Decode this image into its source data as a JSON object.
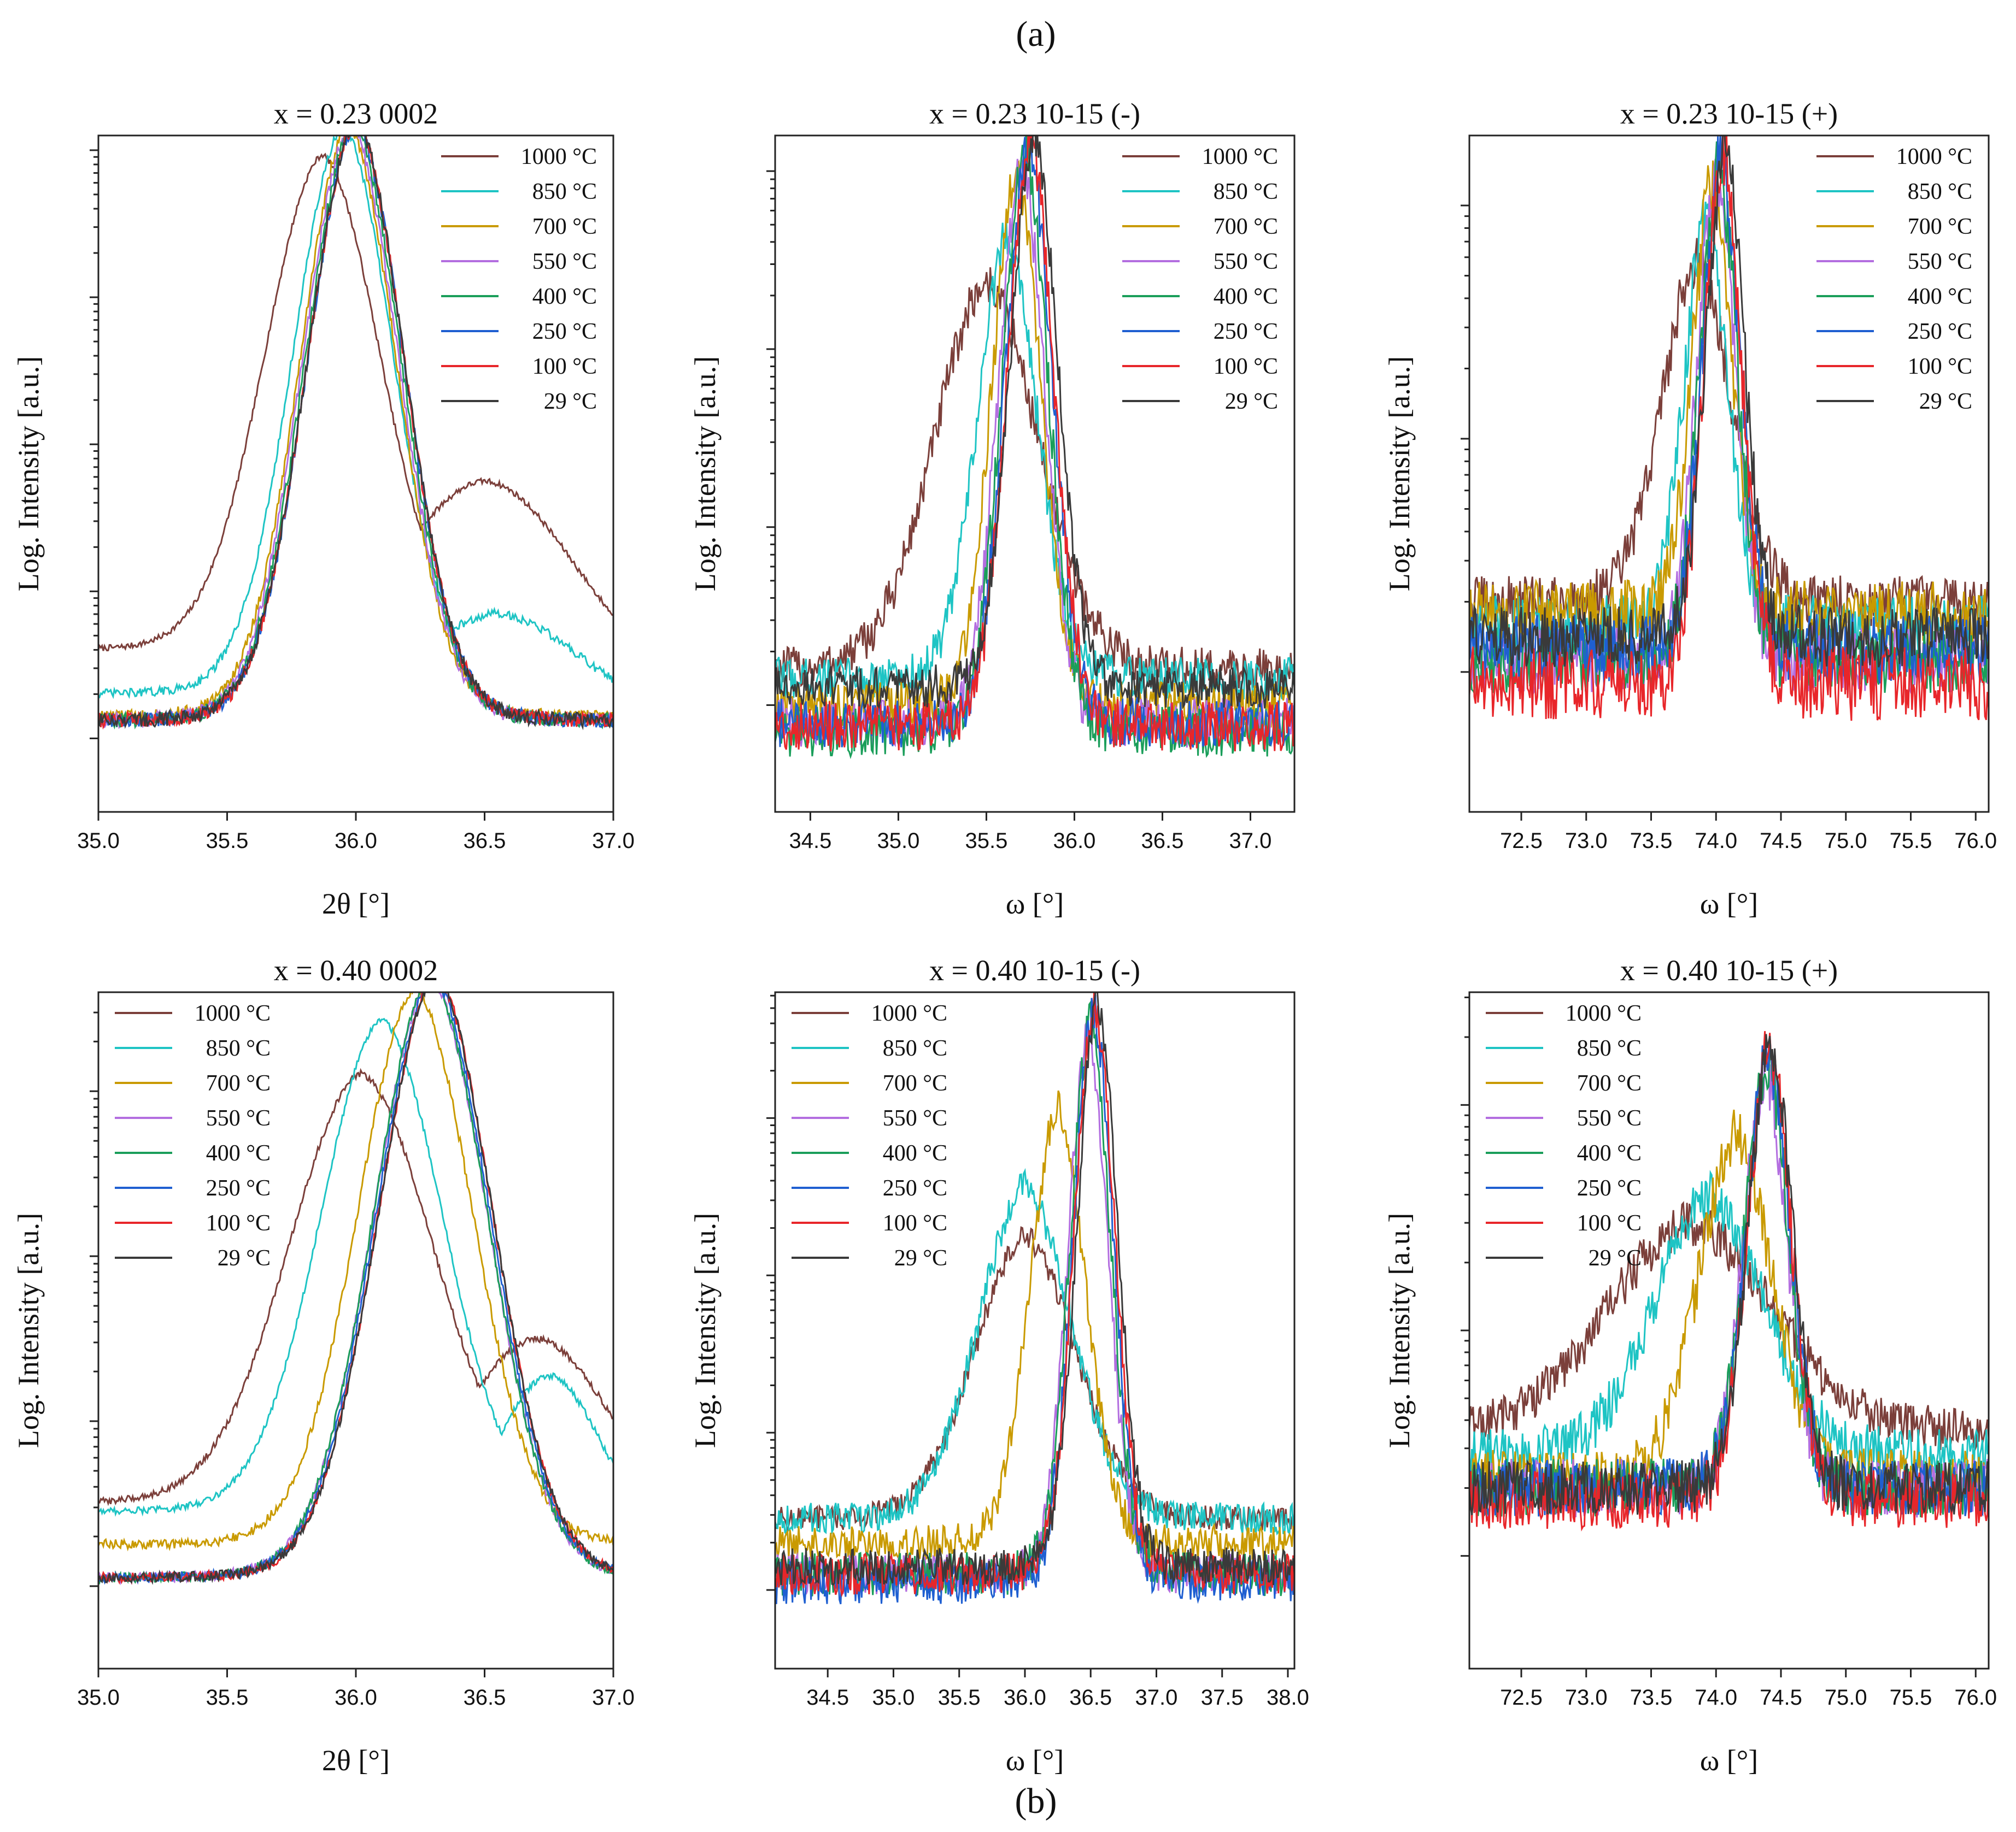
{
  "figure": {
    "label_a": "(a)",
    "label_b": "(b)"
  },
  "colors": {
    "1000 °C": "#7b3f3a",
    "850 °C": "#1ec4c4",
    "700 °C": "#c99a00",
    "550 °C": "#b36ee0",
    "400 °C": "#1a9e5a",
    "250 °C": "#1f5fd1",
    "100 °C": "#e8262a",
    "29 °C": "#3a3a3a"
  },
  "chart_data": [
    {
      "type": "line",
      "title": "x = 0.23 0002",
      "xlabel": "2θ [°]",
      "ylabel": "Log. Intensity [a.u.]",
      "xlim": [
        35.0,
        37.0
      ],
      "xticks": [
        35.0,
        35.5,
        36.0,
        36.5,
        37.0
      ],
      "xtick_labels": [
        "35.0",
        "35.5",
        "36.0",
        "36.5",
        "37.0"
      ],
      "ylim": [
        -0.5,
        4.1
      ],
      "legend": "top-right",
      "series": [
        {
          "name": "1000 °C",
          "center": 35.87,
          "peak": 3.7,
          "width": 0.32,
          "background": 0.6,
          "shoulder": [
            36.5,
            1.35,
            0.35
          ],
          "noise": 0.02
        },
        {
          "name": "850 °C",
          "center": 35.95,
          "peak": 3.85,
          "width": 0.28,
          "background": 0.3,
          "shoulder": [
            36.55,
            0.6,
            0.3
          ],
          "noise": 0.03
        },
        {
          "name": "700 °C",
          "center": 35.97,
          "peak": 3.85,
          "width": 0.27,
          "background": 0.15,
          "noise": 0.04
        },
        {
          "name": "550 °C",
          "center": 35.98,
          "peak": 3.85,
          "width": 0.27,
          "background": 0.12,
          "noise": 0.05
        },
        {
          "name": "400 °C",
          "center": 35.99,
          "peak": 3.86,
          "width": 0.27,
          "background": 0.12,
          "noise": 0.05
        },
        {
          "name": "250 °C",
          "center": 36.0,
          "peak": 3.86,
          "width": 0.27,
          "background": 0.12,
          "noise": 0.05
        },
        {
          "name": "100 °C",
          "center": 36.0,
          "peak": 3.87,
          "width": 0.27,
          "background": 0.12,
          "noise": 0.05
        },
        {
          "name": "29 °C",
          "center": 36.0,
          "peak": 3.88,
          "width": 0.27,
          "background": 0.12,
          "noise": 0.05
        }
      ]
    },
    {
      "type": "line",
      "title": "x = 0.23 10-15 (-)",
      "xlabel": "ω [°]",
      "ylabel": "Log. Intensity [a.u.]",
      "xlim": [
        34.3,
        37.25
      ],
      "xticks": [
        34.5,
        35.0,
        35.5,
        36.0,
        36.5,
        37.0
      ],
      "xtick_labels": [
        "34.5",
        "35.0",
        "35.5",
        "36.0",
        "36.5",
        "37.0"
      ],
      "ylim": [
        -0.6,
        3.2
      ],
      "legend": "top-right",
      "series": [
        {
          "name": "1000 °C",
          "center": 35.5,
          "peak": 2.2,
          "width": 0.42,
          "background": 0.2,
          "noise": 0.12
        },
        {
          "name": "850 °C",
          "center": 35.62,
          "peak": 2.45,
          "width": 0.24,
          "background": 0.15,
          "noise": 0.12
        },
        {
          "name": "700 °C",
          "center": 35.67,
          "peak": 2.75,
          "width": 0.2,
          "background": 0.0,
          "noise": 0.13
        },
        {
          "name": "550 °C",
          "center": 35.7,
          "peak": 2.8,
          "width": 0.19,
          "background": -0.1,
          "noise": 0.14
        },
        {
          "name": "400 °C",
          "center": 35.72,
          "peak": 2.85,
          "width": 0.19,
          "background": -0.15,
          "noise": 0.14
        },
        {
          "name": "250 °C",
          "center": 35.74,
          "peak": 2.9,
          "width": 0.19,
          "background": -0.1,
          "noise": 0.14
        },
        {
          "name": "100 °C",
          "center": 35.75,
          "peak": 2.92,
          "width": 0.19,
          "background": -0.12,
          "noise": 0.14
        },
        {
          "name": "29 °C",
          "center": 35.77,
          "peak": 2.98,
          "width": 0.19,
          "background": 0.1,
          "noise": 0.12
        }
      ]
    },
    {
      "type": "line",
      "title": "x = 0.23 10-15 (+)",
      "xlabel": "ω [°]",
      "ylabel": "Log. Intensity [a.u.]",
      "xlim": [
        72.1,
        76.1
      ],
      "xticks": [
        72.5,
        73.0,
        73.5,
        74.0,
        74.5,
        75.0,
        75.5,
        76.0
      ],
      "xtick_labels": [
        "72.5",
        "73.0",
        "73.5",
        "74.0",
        "74.5",
        "75.0",
        "75.5",
        "76.0"
      ],
      "ylim": [
        -0.6,
        2.3
      ],
      "legend": "top-right",
      "series": [
        {
          "name": "1000 °C",
          "center": 73.85,
          "peak": 1.65,
          "width": 0.38,
          "background": 0.3,
          "noise": 0.11
        },
        {
          "name": "850 °C",
          "center": 73.92,
          "peak": 1.8,
          "width": 0.24,
          "background": 0.2,
          "noise": 0.13
        },
        {
          "name": "700 °C",
          "center": 73.97,
          "peak": 1.95,
          "width": 0.22,
          "background": 0.25,
          "noise": 0.14
        },
        {
          "name": "550 °C",
          "center": 74.0,
          "peak": 1.98,
          "width": 0.21,
          "background": 0.05,
          "noise": 0.14
        },
        {
          "name": "400 °C",
          "center": 74.02,
          "peak": 2.0,
          "width": 0.21,
          "background": 0.05,
          "noise": 0.14
        },
        {
          "name": "250 °C",
          "center": 74.04,
          "peak": 2.03,
          "width": 0.21,
          "background": 0.1,
          "noise": 0.15
        },
        {
          "name": "100 °C",
          "center": 74.05,
          "peak": 2.05,
          "width": 0.21,
          "background": -0.05,
          "noise": 0.16
        },
        {
          "name": "29 °C",
          "center": 74.07,
          "peak": 2.08,
          "width": 0.21,
          "background": 0.15,
          "noise": 0.13
        }
      ]
    },
    {
      "type": "line",
      "title": "x = 0.40 0002",
      "xlabel": "2θ [°]",
      "ylabel": "Log. Intensity [a.u.]",
      "xlim": [
        35.0,
        37.0
      ],
      "xticks": [
        35.0,
        35.5,
        36.0,
        36.5,
        37.0
      ],
      "xtick_labels": [
        "35.0",
        "35.5",
        "36.0",
        "36.5",
        "37.0"
      ],
      "ylim": [
        -0.5,
        3.6
      ],
      "legend": "top-left",
      "series": [
        {
          "name": "1000 °C",
          "center": 36.02,
          "peak": 2.9,
          "width": 0.4,
          "background": 0.5,
          "shoulder": [
            36.7,
            1.15,
            0.3
          ],
          "noise": 0.02
        },
        {
          "name": "850 °C",
          "center": 36.1,
          "peak": 3.2,
          "width": 0.34,
          "background": 0.45,
          "shoulder": [
            36.75,
            0.95,
            0.2
          ],
          "noise": 0.02
        },
        {
          "name": "700 °C",
          "center": 36.23,
          "peak": 3.35,
          "width": 0.32,
          "background": 0.25,
          "noise": 0.03
        },
        {
          "name": "550 °C",
          "center": 36.29,
          "peak": 3.4,
          "width": 0.32,
          "background": 0.05,
          "noise": 0.03
        },
        {
          "name": "400 °C",
          "center": 36.29,
          "peak": 3.41,
          "width": 0.32,
          "background": 0.05,
          "noise": 0.03
        },
        {
          "name": "250 °C",
          "center": 36.3,
          "peak": 3.41,
          "width": 0.32,
          "background": 0.05,
          "noise": 0.03
        },
        {
          "name": "100 °C",
          "center": 36.31,
          "peak": 3.42,
          "width": 0.32,
          "background": 0.05,
          "noise": 0.03
        },
        {
          "name": "29 °C",
          "center": 36.31,
          "peak": 3.42,
          "width": 0.32,
          "background": 0.05,
          "noise": 0.03
        }
      ]
    },
    {
      "type": "line",
      "title": "x = 0.40 10-15 (-)",
      "xlabel": "ω [°]",
      "ylabel": "Log. Intensity [a.u.]",
      "xlim": [
        34.1,
        38.05
      ],
      "xticks": [
        34.5,
        35.0,
        35.5,
        36.0,
        36.5,
        37.0,
        37.5,
        38.0
      ],
      "xtick_labels": [
        "34.5",
        "35.0",
        "35.5",
        "36.0",
        "36.5",
        "37.0",
        "37.5",
        "38.0"
      ],
      "ylim": [
        -0.5,
        3.8
      ],
      "legend": "top-left",
      "series": [
        {
          "name": "1000 °C",
          "center": 36.0,
          "peak": 2.1,
          "width": 0.55,
          "background": 0.45,
          "noise": 0.08
        },
        {
          "name": "850 °C",
          "center": 36.0,
          "peak": 2.4,
          "width": 0.5,
          "background": 0.45,
          "noise": 0.1
        },
        {
          "name": "700 °C",
          "center": 36.25,
          "peak": 2.85,
          "width": 0.3,
          "background": 0.3,
          "noise": 0.11
        },
        {
          "name": "550 °C",
          "center": 36.48,
          "peak": 3.25,
          "width": 0.22,
          "background": 0.1,
          "noise": 0.13
        },
        {
          "name": "400 °C",
          "center": 36.5,
          "peak": 3.35,
          "width": 0.22,
          "background": 0.1,
          "noise": 0.14
        },
        {
          "name": "250 °C",
          "center": 36.52,
          "peak": 3.4,
          "width": 0.22,
          "background": 0.05,
          "noise": 0.14
        },
        {
          "name": "100 °C",
          "center": 36.53,
          "peak": 3.43,
          "width": 0.22,
          "background": 0.1,
          "noise": 0.13
        },
        {
          "name": "29 °C",
          "center": 36.55,
          "peak": 3.48,
          "width": 0.22,
          "background": 0.15,
          "noise": 0.12
        }
      ]
    },
    {
      "type": "line",
      "title": "x = 0.40 10-15 (+)",
      "xlabel": "ω [°]",
      "ylabel": "Log. Intensity [a.u.]",
      "xlim": [
        72.1,
        76.1
      ],
      "xticks": [
        72.5,
        73.0,
        73.5,
        74.0,
        74.5,
        75.0,
        75.5,
        76.0
      ],
      "xtick_labels": [
        "72.5",
        "73.0",
        "73.5",
        "74.0",
        "74.5",
        "75.0",
        "75.5",
        "76.0"
      ],
      "ylim": [
        -0.5,
        2.5
      ],
      "legend": "top-left",
      "series": [
        {
          "name": "1000 °C",
          "center": 73.8,
          "peak": 1.4,
          "width": 0.9,
          "background": 0.55,
          "noise": 0.1
        },
        {
          "name": "850 °C",
          "center": 73.95,
          "peak": 1.5,
          "width": 0.6,
          "background": 0.45,
          "noise": 0.11
        },
        {
          "name": "700 °C",
          "center": 74.15,
          "peak": 1.75,
          "width": 0.4,
          "background": 0.35,
          "noise": 0.12
        },
        {
          "name": "550 °C",
          "center": 74.38,
          "peak": 2.0,
          "width": 0.24,
          "background": 0.3,
          "noise": 0.13
        },
        {
          "name": "400 °C",
          "center": 74.39,
          "peak": 2.05,
          "width": 0.24,
          "background": 0.3,
          "noise": 0.13
        },
        {
          "name": "250 °C",
          "center": 74.4,
          "peak": 2.08,
          "width": 0.24,
          "background": 0.3,
          "noise": 0.13
        },
        {
          "name": "100 °C",
          "center": 74.41,
          "peak": 2.1,
          "width": 0.24,
          "background": 0.25,
          "noise": 0.13
        },
        {
          "name": "29 °C",
          "center": 74.42,
          "peak": 2.12,
          "width": 0.24,
          "background": 0.3,
          "noise": 0.12
        }
      ]
    }
  ]
}
